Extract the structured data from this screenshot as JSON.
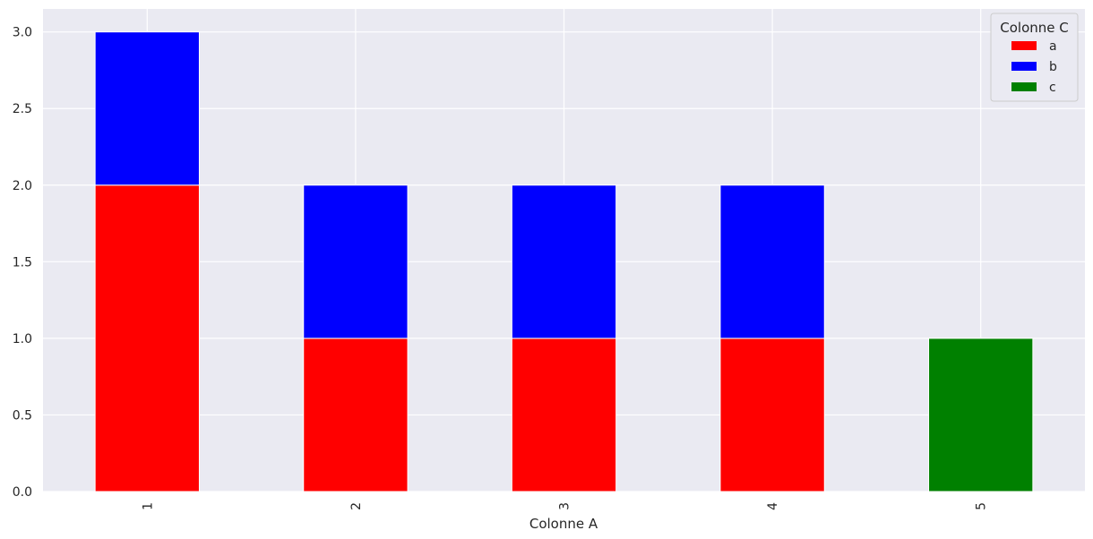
{
  "chart_data": {
    "type": "bar",
    "stacked": true,
    "categories": [
      "1",
      "2",
      "3",
      "4",
      "5"
    ],
    "series": [
      {
        "name": "a",
        "color": "#ff0000",
        "values": [
          2,
          1,
          1,
          1,
          0
        ]
      },
      {
        "name": "b",
        "color": "#0000ff",
        "values": [
          1,
          1,
          1,
          1,
          0
        ]
      },
      {
        "name": "c",
        "color": "#008000",
        "values": [
          0,
          0,
          0,
          0,
          1
        ]
      }
    ],
    "xlabel": "Colonne A",
    "ylabel": "",
    "ylim": [
      0,
      3.15
    ],
    "yticks": [
      0.0,
      0.5,
      1.0,
      1.5,
      2.0,
      2.5,
      3.0
    ],
    "ytick_labels": [
      "0.0",
      "0.5",
      "1.0",
      "1.5",
      "2.0",
      "2.5",
      "3.0"
    ],
    "grid": true,
    "legend": {
      "title": "Colonne C",
      "placement": "top-right"
    },
    "background": "#eaeaf2",
    "xtick_rotation": "vertical"
  }
}
